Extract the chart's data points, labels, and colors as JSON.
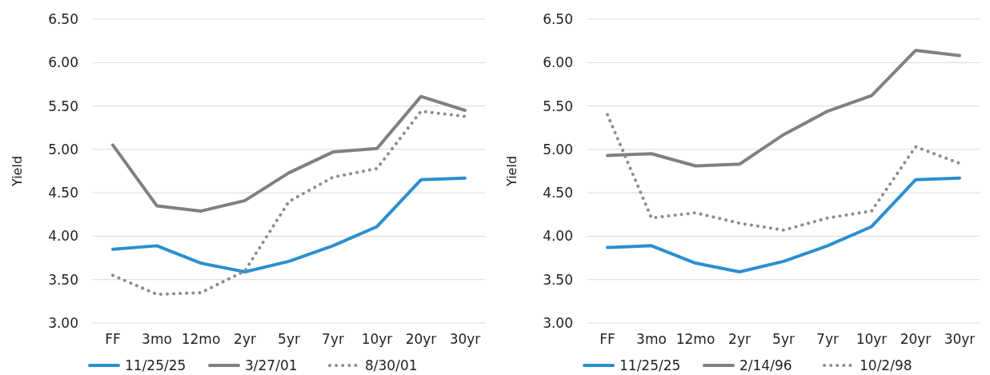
{
  "chart_data": [
    {
      "type": "line",
      "ylabel": "Yield",
      "categories": [
        "FF",
        "3mo",
        "12mo",
        "2yr",
        "5yr",
        "7yr",
        "10yr",
        "20yr",
        "30yr"
      ],
      "ylim": [
        3,
        6.5
      ],
      "yticks": [
        {
          "value": 3,
          "label": "3.00"
        },
        {
          "value": 3.5,
          "label": "3.50"
        },
        {
          "value": 4,
          "label": "4.00"
        },
        {
          "value": 4.5,
          "label": "4.50"
        },
        {
          "value": 5,
          "label": "5.00"
        },
        {
          "value": 5.5,
          "label": "5.50"
        },
        {
          "value": 6,
          "label": "6.00"
        },
        {
          "value": 6.5,
          "label": "6.50"
        }
      ],
      "grid": "y",
      "legend": "bottom",
      "series": [
        {
          "name": "11/25/25",
          "color": "#2b8fd0",
          "line_style": "solid",
          "values": [
            3.85,
            3.89,
            3.69,
            3.59,
            3.71,
            3.89,
            4.11,
            4.65,
            4.67
          ]
        },
        {
          "name": "3/27/01",
          "color": "#808080",
          "line_style": "solid",
          "values": [
            5.05,
            4.35,
            4.29,
            4.41,
            4.73,
            4.97,
            5.01,
            5.61,
            5.45
          ]
        },
        {
          "name": "8/30/01",
          "color": "#8c8c8c",
          "line_style": "dotted",
          "values": [
            3.55,
            3.33,
            3.35,
            3.6,
            4.4,
            4.68,
            4.78,
            5.44,
            5.38
          ]
        }
      ]
    },
    {
      "type": "line",
      "ylabel": "Yield",
      "categories": [
        "FF",
        "3mo",
        "12mo",
        "2yr",
        "5yr",
        "7yr",
        "10yr",
        "20yr",
        "30yr"
      ],
      "ylim": [
        3,
        6.5
      ],
      "yticks": [
        {
          "value": 3,
          "label": "3.00"
        },
        {
          "value": 3.5,
          "label": "3.50"
        },
        {
          "value": 4,
          "label": "4.00"
        },
        {
          "value": 4.5,
          "label": "4.50"
        },
        {
          "value": 5,
          "label": "5.00"
        },
        {
          "value": 5.5,
          "label": "5.50"
        },
        {
          "value": 6,
          "label": "6.00"
        },
        {
          "value": 6.5,
          "label": "6.50"
        }
      ],
      "grid": "y",
      "legend": "bottom",
      "series": [
        {
          "name": "11/25/25",
          "color": "#2b8fd0",
          "line_style": "solid",
          "values": [
            3.87,
            3.89,
            3.69,
            3.59,
            3.71,
            3.89,
            4.11,
            4.65,
            4.67
          ]
        },
        {
          "name": "2/14/96",
          "color": "#808080",
          "line_style": "solid",
          "values": [
            4.93,
            4.95,
            4.81,
            4.83,
            5.17,
            5.44,
            5.62,
            6.14,
            6.08
          ]
        },
        {
          "name": "10/2/98",
          "color": "#8c8c8c",
          "line_style": "dotted",
          "values": [
            5.4,
            4.21,
            4.27,
            4.15,
            4.07,
            4.21,
            4.29,
            5.03,
            4.84
          ]
        }
      ]
    }
  ]
}
